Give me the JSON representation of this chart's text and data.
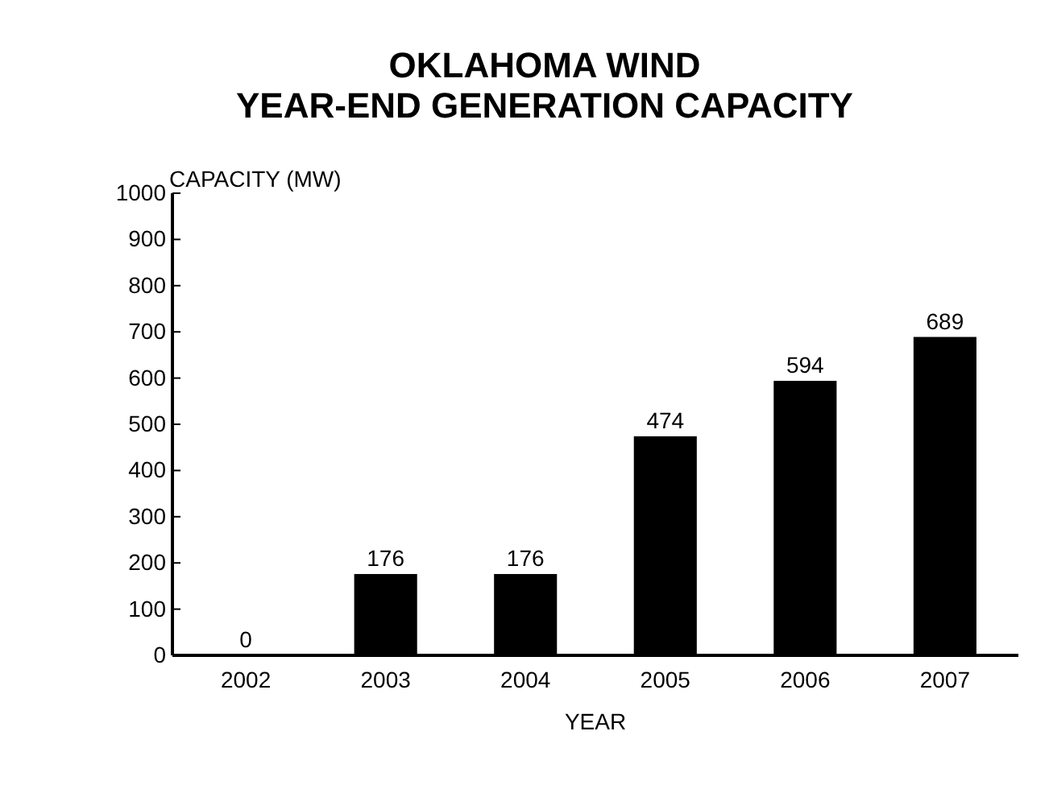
{
  "chart_data": {
    "type": "bar",
    "title": "OKLAHOMA WIND\nYEAR-END GENERATION CAPACITY",
    "xlabel": "YEAR",
    "ylabel": "CAPACITY (MW)",
    "categories": [
      "2002",
      "2003",
      "2004",
      "2005",
      "2006",
      "2007"
    ],
    "values": [
      0,
      176,
      176,
      474,
      594,
      689
    ],
    "color": "#000000",
    "ylim": [
      0,
      1000
    ],
    "yticks": [
      0,
      100,
      200,
      300,
      400,
      500,
      600,
      700,
      800,
      900,
      1000
    ],
    "grid": false,
    "data_labels": true
  }
}
